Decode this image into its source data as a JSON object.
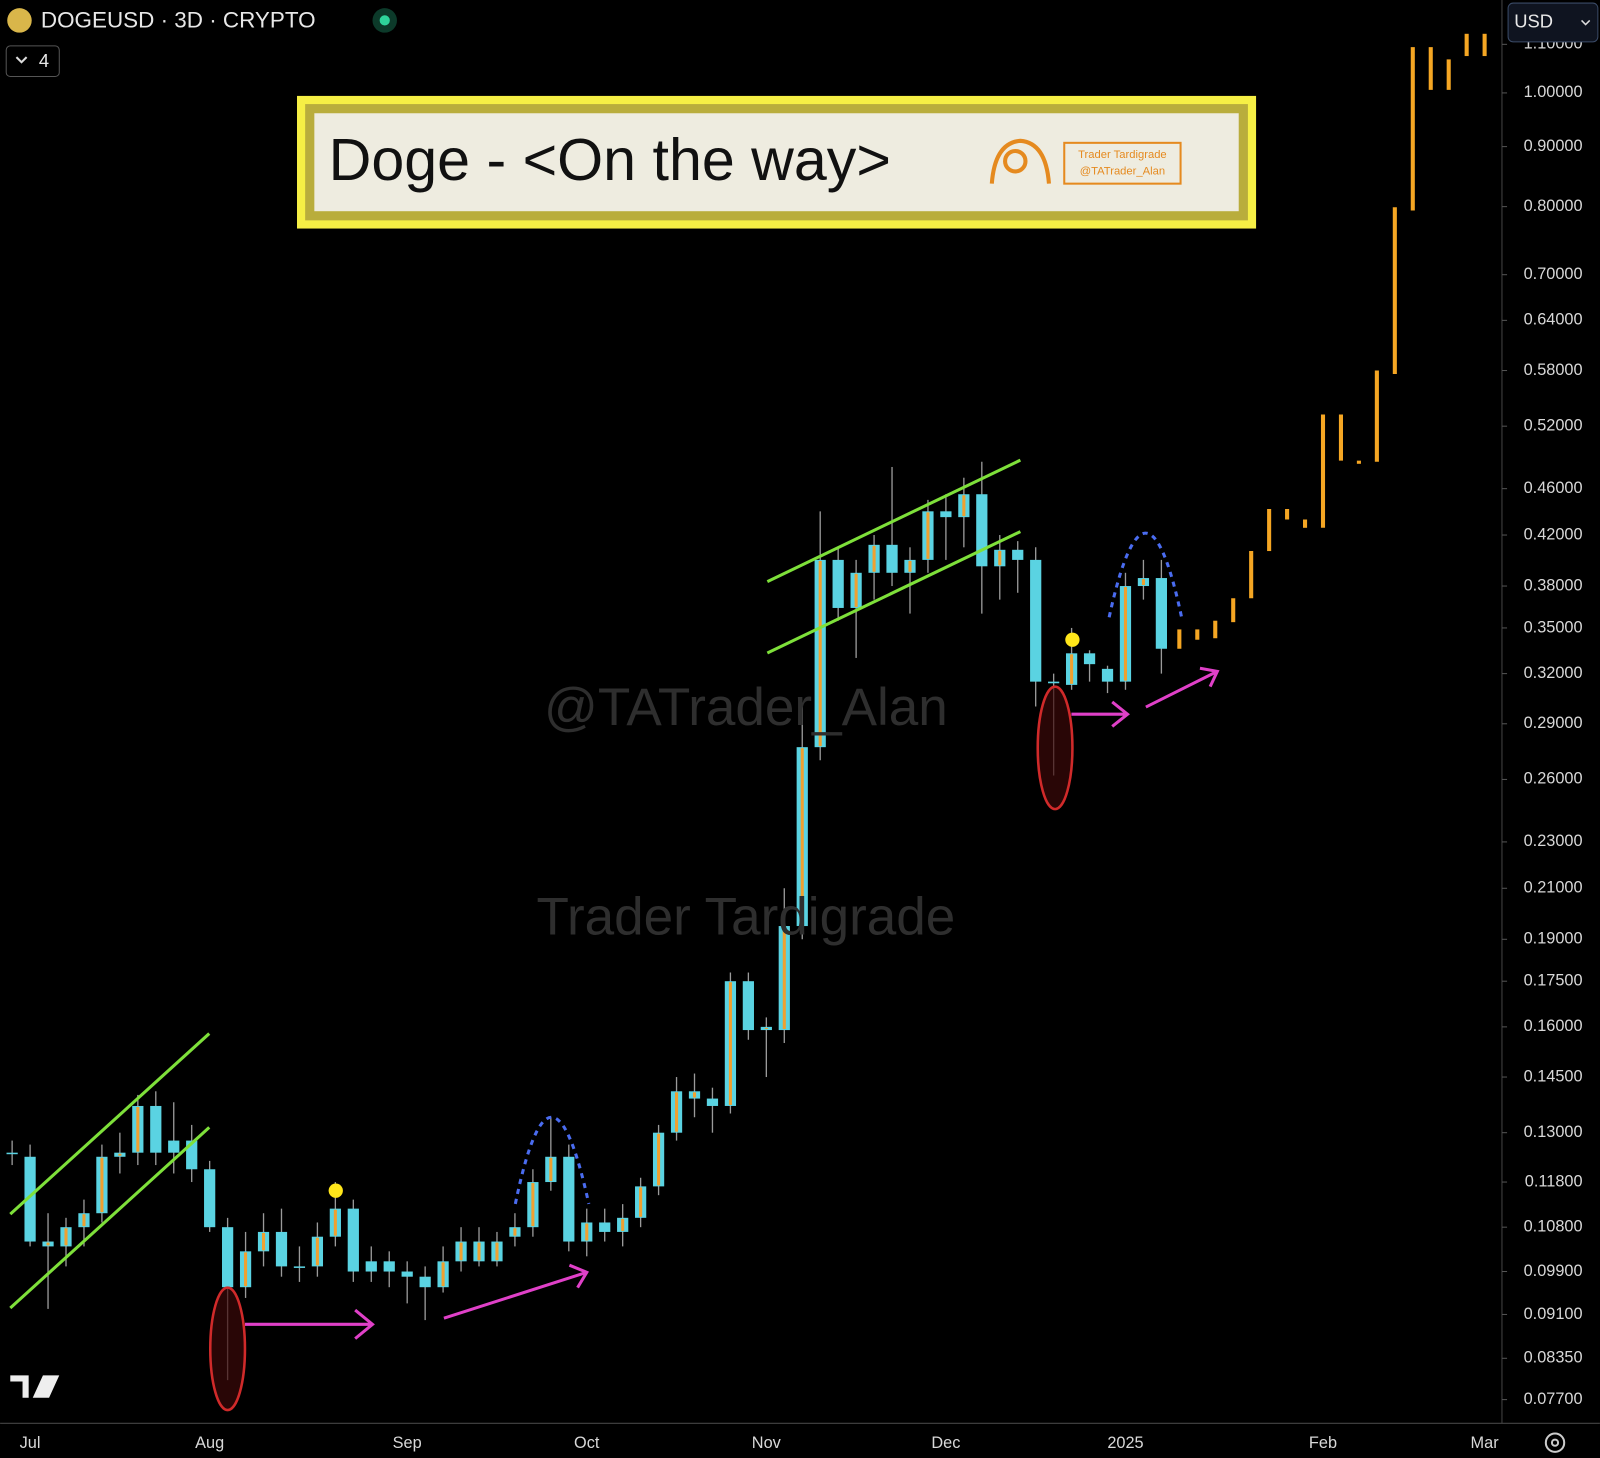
{
  "toolbar": {
    "symbol": "DOGEUSD · 3D · CRYPTO",
    "indicator_count": 4,
    "currency": "USD"
  },
  "chart_data": {
    "type": "candlestick",
    "title": "Doge - <On the way>",
    "logo_lines": [
      "Trader Tardigrade",
      "@TATrader_Alan"
    ],
    "watermarks": [
      "@TATrader_Alan",
      "Trader Tardigrade"
    ],
    "categories": [
      null,
      "Jul",
      null,
      null,
      null,
      null,
      null,
      null,
      null,
      null,
      null,
      "Aug",
      null,
      null,
      null,
      null,
      null,
      null,
      null,
      null,
      null,
      null,
      "Sep",
      null,
      null,
      null,
      null,
      null,
      null,
      null,
      null,
      null,
      "Oct",
      null,
      null,
      null,
      null,
      null,
      null,
      null,
      null,
      null,
      "Nov",
      null,
      null,
      null,
      null,
      null,
      null,
      null,
      null,
      null,
      "Dec",
      null,
      null,
      null,
      null,
      null,
      null,
      null,
      null,
      null,
      "2025",
      null,
      null,
      null,
      null,
      null,
      null,
      null,
      null,
      null,
      null,
      "Feb",
      null,
      null,
      null,
      null,
      null,
      null,
      null,
      null,
      "Mar"
    ],
    "open": [
      0.125,
      0.124,
      0.104,
      0.104,
      0.108,
      0.111,
      0.124,
      0.125,
      0.137,
      0.128,
      0.128,
      0.121,
      0.108,
      0.096,
      0.103,
      0.107,
      0.1,
      0.1,
      0.106,
      0.112,
      0.101,
      0.101,
      0.099,
      0.098,
      0.096,
      0.101,
      0.101,
      0.101,
      0.106,
      0.108,
      0.118,
      0.124,
      0.105,
      0.109,
      0.107,
      0.11,
      0.117,
      0.13,
      0.139,
      0.139,
      0.137,
      0.175,
      0.159,
      0.159,
      0.195,
      0.277,
      0.4,
      0.364,
      0.39,
      0.412,
      0.39,
      0.4,
      0.44,
      0.435,
      0.455,
      0.395,
      0.408,
      0.4,
      0.315,
      0.313,
      0.333,
      0.323,
      0.315,
      0.38,
      0.386,
      null,
      null,
      null,
      null,
      null,
      null,
      null,
      null,
      null,
      null,
      null,
      null,
      null,
      null,
      null,
      null,
      null,
      null
    ],
    "high": [
      0.128,
      0.127,
      0.111,
      0.11,
      0.114,
      0.127,
      0.13,
      0.14,
      0.141,
      0.138,
      0.132,
      0.123,
      0.11,
      0.107,
      0.111,
      0.112,
      0.104,
      0.109,
      0.118,
      0.114,
      0.104,
      0.103,
      0.101,
      0.1,
      0.104,
      0.108,
      0.108,
      0.107,
      0.111,
      0.121,
      0.134,
      0.127,
      0.112,
      0.112,
      0.113,
      0.119,
      0.132,
      0.145,
      0.146,
      0.142,
      0.178,
      0.178,
      0.163,
      0.21,
      0.3,
      0.44,
      0.41,
      0.4,
      0.42,
      0.48,
      0.41,
      0.45,
      0.455,
      0.47,
      0.485,
      0.42,
      0.415,
      0.41,
      0.32,
      0.35,
      0.335,
      0.325,
      0.39,
      0.4,
      0.4,
      null,
      null,
      null,
      null,
      null,
      null,
      null,
      null,
      null,
      null,
      null,
      null,
      null,
      null,
      null,
      null,
      null,
      null
    ],
    "low": [
      0.122,
      0.104,
      0.092,
      0.1,
      0.104,
      0.109,
      0.12,
      0.122,
      0.122,
      0.12,
      0.118,
      0.107,
      0.08,
      0.094,
      0.1,
      0.098,
      0.097,
      0.098,
      0.104,
      0.097,
      0.097,
      0.096,
      0.093,
      0.09,
      0.095,
      0.099,
      0.1,
      0.1,
      0.104,
      0.106,
      0.116,
      0.103,
      0.102,
      0.105,
      0.104,
      0.108,
      0.115,
      0.128,
      0.134,
      0.13,
      0.135,
      0.156,
      0.145,
      0.155,
      0.19,
      0.27,
      0.355,
      0.33,
      0.37,
      0.38,
      0.36,
      0.39,
      0.4,
      0.41,
      0.36,
      0.37,
      0.375,
      0.3,
      0.262,
      0.31,
      0.315,
      0.308,
      0.31,
      0.37,
      0.32,
      null,
      null,
      null,
      null,
      null,
      null,
      null,
      null,
      null,
      null,
      null,
      null,
      null,
      null,
      null,
      null,
      null,
      null
    ],
    "close": [
      0.125,
      0.105,
      0.105,
      0.108,
      0.111,
      0.124,
      0.125,
      0.137,
      0.125,
      0.125,
      0.121,
      0.108,
      0.096,
      0.103,
      0.107,
      0.1,
      0.1,
      0.106,
      0.112,
      0.099,
      0.099,
      0.099,
      0.098,
      0.096,
      0.101,
      0.105,
      0.105,
      0.105,
      0.108,
      0.118,
      0.124,
      0.105,
      0.109,
      0.107,
      0.11,
      0.117,
      0.13,
      0.141,
      0.141,
      0.137,
      0.175,
      0.159,
      0.16,
      0.195,
      0.277,
      0.4,
      0.364,
      0.39,
      0.412,
      0.39,
      0.4,
      0.44,
      0.435,
      0.455,
      0.395,
      0.408,
      0.4,
      0.315,
      0.314,
      0.333,
      0.326,
      0.315,
      0.38,
      0.386,
      0.336,
      null,
      null,
      null,
      null,
      null,
      null,
      null,
      null,
      null,
      null,
      null,
      null,
      null,
      null,
      null,
      null,
      null,
      null
    ],
    "color": "#5ad3e2",
    "accent_color": "#f0a030",
    "wick_color": "#9a9a9a",
    "projection": {
      "color": "#f5a623",
      "open": [
        null,
        null,
        null,
        null,
        null,
        null,
        null,
        null,
        null,
        null,
        null,
        null,
        null,
        null,
        null,
        null,
        null,
        null,
        null,
        null,
        null,
        null,
        null,
        null,
        null,
        null,
        null,
        null,
        null,
        null,
        null,
        null,
        null,
        null,
        null,
        null,
        null,
        null,
        null,
        null,
        null,
        null,
        null,
        null,
        null,
        null,
        null,
        null,
        null,
        null,
        null,
        null,
        null,
        null,
        null,
        null,
        null,
        null,
        null,
        null,
        null,
        null,
        null,
        null,
        null,
        0.336,
        0.342,
        0.343,
        0.354,
        0.371,
        0.407,
        0.433,
        0.426,
        0.426,
        0.486,
        0.483,
        0.485,
        0.576,
        0.794,
        1.006,
        1.006,
        1.075,
        1.075
      ],
      "close": [
        null,
        null,
        null,
        null,
        null,
        null,
        null,
        null,
        null,
        null,
        null,
        null,
        null,
        null,
        null,
        null,
        null,
        null,
        null,
        null,
        null,
        null,
        null,
        null,
        null,
        null,
        null,
        null,
        null,
        null,
        null,
        null,
        null,
        null,
        null,
        null,
        null,
        null,
        null,
        null,
        null,
        null,
        null,
        null,
        null,
        null,
        null,
        null,
        null,
        null,
        null,
        null,
        null,
        null,
        null,
        null,
        null,
        null,
        null,
        null,
        null,
        null,
        null,
        null,
        null,
        0.349,
        0.349,
        0.355,
        0.371,
        0.407,
        0.442,
        0.442,
        0.433,
        0.532,
        0.532,
        0.486,
        0.58,
        0.799,
        1.094,
        1.094,
        1.068,
        1.123,
        1.123
      ]
    },
    "ylim": [
      0.0735,
      1.2
    ],
    "log_scale": true,
    "grid": false,
    "yticks": [
      {
        "value": 1.1,
        "label": "1.10000"
      },
      {
        "value": 1.0,
        "label": "1.00000"
      },
      {
        "value": 0.9,
        "label": "0.90000"
      },
      {
        "value": 0.8,
        "label": "0.80000"
      },
      {
        "value": 0.7,
        "label": "0.70000"
      },
      {
        "value": 0.64,
        "label": "0.64000"
      },
      {
        "value": 0.58,
        "label": "0.58000"
      },
      {
        "value": 0.52,
        "label": "0.52000"
      },
      {
        "value": 0.46,
        "label": "0.46000"
      },
      {
        "value": 0.42,
        "label": "0.42000"
      },
      {
        "value": 0.38,
        "label": "0.38000"
      },
      {
        "value": 0.35,
        "label": "0.35000"
      },
      {
        "value": 0.32,
        "label": "0.32000"
      },
      {
        "value": 0.29,
        "label": "0.29000"
      },
      {
        "value": 0.26,
        "label": "0.26000"
      },
      {
        "value": 0.23,
        "label": "0.23000"
      },
      {
        "value": 0.21,
        "label": "0.21000"
      },
      {
        "value": 0.19,
        "label": "0.19000"
      },
      {
        "value": 0.175,
        "label": "0.17500"
      },
      {
        "value": 0.16,
        "label": "0.16000"
      },
      {
        "value": 0.145,
        "label": "0.14500"
      },
      {
        "value": 0.13,
        "label": "0.13000"
      },
      {
        "value": 0.118,
        "label": "0.11800"
      },
      {
        "value": 0.108,
        "label": "0.10800"
      },
      {
        "value": 0.099,
        "label": "0.09900"
      },
      {
        "value": 0.091,
        "label": "0.09100"
      },
      {
        "value": 0.0835,
        "label": "0.08350"
      },
      {
        "value": 0.077,
        "label": "0.07700"
      }
    ]
  }
}
